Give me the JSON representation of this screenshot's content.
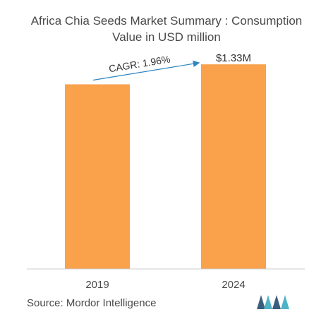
{
  "title_line1": "Africa Chia Seeds Market Summary : Consumption",
  "title_line2": "Value in USD million",
  "source": "Source: Mordor Intelligence",
  "colors": {
    "bar": "#F9A14B",
    "arrow": "#2E86C1",
    "axis": "#cccccc",
    "text": "#4a4a4a",
    "logo_dark": "#3a5f7d",
    "logo_light": "#4fb3c8"
  },
  "chart_data": {
    "type": "bar",
    "categories": [
      "2019",
      "2024"
    ],
    "values": [
      1.2,
      1.33
    ],
    "data_labels": [
      "",
      "$1.33M"
    ],
    "annotation": "CAGR: 1.96%",
    "ylim": [
      0,
      1.45
    ]
  }
}
